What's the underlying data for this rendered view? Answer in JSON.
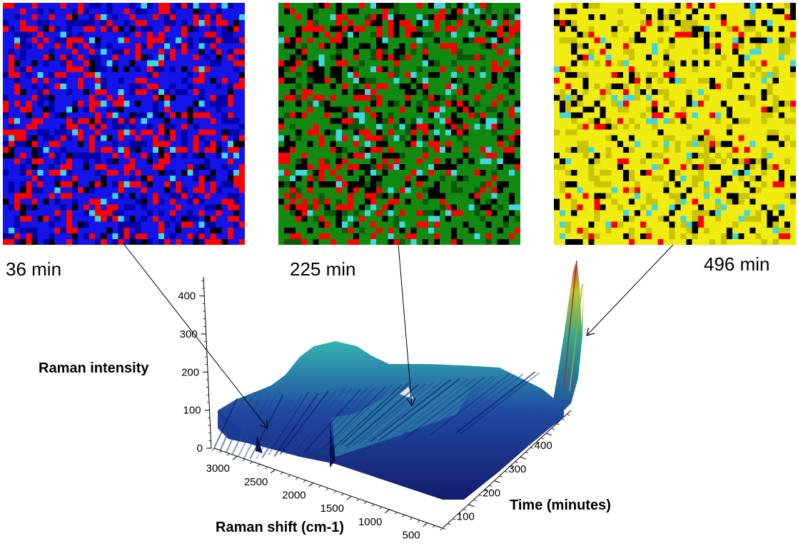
{
  "time_labels": [
    "36 min",
    "225 min",
    "496 min"
  ],
  "map_colors": {
    "0": {
      "base": "#1414e8",
      "dark": "#0000a8",
      "speck": "#ff0000",
      "cyan": "#40d8e0",
      "black": "#000000"
    },
    "1": {
      "base": "#128a12",
      "dark": "#0a5a0a",
      "speck": "#ff0000",
      "cyan": "#40d8e0",
      "black": "#000000"
    },
    "2": {
      "base": "#f0ec10",
      "dark": "#c8c400",
      "speck": "#ff0000",
      "cyan": "#40d8e0",
      "black": "#000000"
    }
  },
  "chart_data": {
    "type": "surface",
    "title": "",
    "zlabel": "Raman intensity",
    "xlabel": "Raman shift (cm-1)",
    "ylabel": "Time (minutes)",
    "z_ticks": [
      "0",
      "100",
      "200",
      "300",
      "400"
    ],
    "x_ticks": [
      "3000",
      "2500",
      "2000",
      "1500",
      "1000",
      "500"
    ],
    "y_ticks": [
      "100",
      "200",
      "300",
      "400"
    ],
    "zlim": [
      0,
      450
    ],
    "xlim": [
      3300,
      300
    ],
    "ylim": [
      0,
      496
    ],
    "annotated_times": [
      36,
      225,
      496
    ],
    "surface_color_low": "#1a2a8c",
    "surface_color_high": "#40c8b0"
  }
}
